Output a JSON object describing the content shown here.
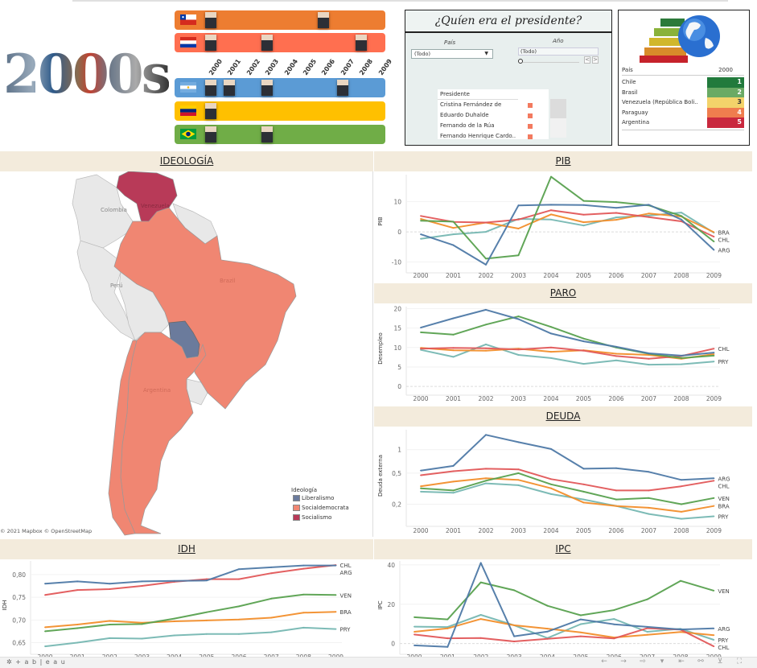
{
  "header": {
    "logo_text": "2000s",
    "timeline": {
      "years": [
        "2000",
        "2001",
        "2002",
        "2003",
        "2004",
        "2005",
        "2006",
        "2007",
        "2008",
        "2009"
      ],
      "rows": [
        {
          "country": "Chile",
          "flag": "chile-flag",
          "color": "#ed7d31",
          "president_years": [
            2000,
            2006
          ]
        },
        {
          "country": "Paraguay",
          "flag": "paraguay-flag",
          "color": "#ff6f50",
          "president_years": [
            2000,
            2003,
            2008
          ]
        },
        {
          "country": "Argentina",
          "flag": "argentina-flag",
          "color": "#5b9bd5",
          "president_years": [
            2000,
            2001,
            2003,
            2007
          ]
        },
        {
          "country": "Venezuela",
          "flag": "venezuela-flag",
          "color": "#ffc000",
          "president_years": [
            2000
          ]
        },
        {
          "country": "Brasil",
          "flag": "brazil-flag",
          "color": "#70ad47",
          "president_years": [
            2000,
            2003
          ]
        }
      ]
    }
  },
  "president_panel": {
    "title": "¿Quíen era el presidente?",
    "pais_label": "País",
    "pais_value": "(Todo)",
    "anio_label": "Año",
    "anio_value": "(Todo)",
    "slider_value": "0",
    "prev_label": "<",
    "next_label": ">",
    "list_header": "Presidente",
    "presidents": [
      "Cristina Fernández de",
      "Eduardo Duhalde",
      "Fernando de la Rúa",
      "Fernando Henrique Cardo.."
    ]
  },
  "ranking_panel": {
    "col_country": "País",
    "col_year": "2000",
    "rows": [
      {
        "country": "Chile",
        "rank": "1",
        "color": "#217a3c"
      },
      {
        "country": "Brasil",
        "rank": "2",
        "color": "#6aaa64"
      },
      {
        "country": "Venezuela (República Boli..",
        "rank": "3",
        "color": "#f3d36a"
      },
      {
        "country": "Paraguay",
        "rank": "4",
        "color": "#ef7d4e"
      },
      {
        "country": "Argentina",
        "rank": "5",
        "color": "#c9283e"
      }
    ]
  },
  "sections": {
    "ideologia": "IDEOLOGÍA",
    "pib": "PIB",
    "paro": "PARO",
    "deuda": "DEUDA",
    "idh": "IDH",
    "ipc": "IPC"
  },
  "map": {
    "labels": {
      "venezuela": "Venezuela",
      "colombia": "Colombia",
      "peru": "Perú",
      "brazil": "Brazil",
      "argentina": "Argentina"
    },
    "legend_title": "Ideología",
    "legend": [
      {
        "label": "Liberalismo",
        "color": "#6b7b9c"
      },
      {
        "label": "Socialdemocrata",
        "color": "#f08672"
      },
      {
        "label": "Socialismo",
        "color": "#b83a58"
      }
    ],
    "ideology": {
      "Venezuela": "Socialismo",
      "Brazil": "Socialdemocrata",
      "Argentina": "Socialdemocrata",
      "Chile": "Socialdemocrata",
      "Paraguay": "Liberalismo"
    },
    "attribution": "© 2021 Mapbox © OpenStreetMap"
  },
  "series_colors": {
    "ARG": "#4e79a7",
    "CHL": "#e15759",
    "BRA": "#f28e2b",
    "VEN": "#59a14f",
    "PRY": "#76b7b2"
  },
  "chart_data": [
    {
      "id": "pib",
      "type": "line",
      "title": "PIB",
      "xlabel": "",
      "ylabel": "PIB",
      "x": [
        2000,
        2001,
        2002,
        2003,
        2004,
        2005,
        2006,
        2007,
        2008,
        2009
      ],
      "ylim": [
        -12,
        19
      ],
      "yticks": [
        -10,
        0,
        10
      ],
      "ytick_labels": [
        "-10",
        "0",
        "10"
      ],
      "scale": "linear",
      "series": [
        {
          "name": "ARG",
          "values": [
            -0.8,
            -4.4,
            -10.9,
            8.8,
            9.0,
            8.9,
            8.0,
            9.0,
            4.1,
            -6.0
          ]
        },
        {
          "name": "CHL",
          "values": [
            5.3,
            3.3,
            3.1,
            4.1,
            7.2,
            5.7,
            6.3,
            4.9,
            3.5,
            -1.6
          ]
        },
        {
          "name": "BRA",
          "values": [
            4.3,
            1.3,
            3.1,
            1.1,
            5.8,
            3.2,
            4.0,
            6.1,
            5.1,
            -0.1
          ]
        },
        {
          "name": "VEN",
          "values": [
            3.7,
            3.4,
            -8.9,
            -7.8,
            18.3,
            10.3,
            9.9,
            8.8,
            5.3,
            -3.2
          ]
        },
        {
          "name": "PRY",
          "values": [
            -2.3,
            -0.8,
            0.0,
            4.3,
            4.1,
            2.1,
            4.8,
            5.4,
            6.4,
            -0.3
          ]
        }
      ],
      "end_labels": [
        "BRA",
        "CHL",
        "ARG"
      ]
    },
    {
      "id": "paro",
      "type": "line",
      "title": "PARO",
      "xlabel": "",
      "ylabel": "Desempleo",
      "x": [
        2000,
        2001,
        2002,
        2003,
        2004,
        2005,
        2006,
        2007,
        2008,
        2009
      ],
      "ylim": [
        -1,
        20.5
      ],
      "yticks": [
        0,
        5,
        10,
        15,
        20
      ],
      "ytick_labels": [
        "0",
        "5",
        "10",
        "15",
        "20"
      ],
      "scale": "linear",
      "series": [
        {
          "name": "ARG",
          "values": [
            15.1,
            17.5,
            19.7,
            17.3,
            13.6,
            11.6,
            10.2,
            8.5,
            7.9,
            8.7
          ]
        },
        {
          "name": "CHL",
          "values": [
            9.7,
            9.9,
            9.8,
            9.5,
            10.0,
            9.2,
            7.8,
            7.1,
            7.8,
            9.7
          ]
        },
        {
          "name": "BRA",
          "values": [
            9.9,
            9.3,
            9.2,
            9.7,
            8.9,
            9.3,
            8.4,
            8.1,
            7.1,
            8.3
          ]
        },
        {
          "name": "VEN",
          "values": [
            13.9,
            13.3,
            15.9,
            18.0,
            15.3,
            12.3,
            10.0,
            8.4,
            7.3,
            7.9
          ]
        },
        {
          "name": "PRY",
          "values": [
            9.4,
            7.6,
            10.8,
            8.1,
            7.3,
            5.8,
            6.7,
            5.6,
            5.7,
            6.4
          ]
        }
      ],
      "end_labels": [
        "CHL",
        "PRY"
      ]
    },
    {
      "id": "deuda",
      "type": "line",
      "title": "DEUDA",
      "xlabel": "",
      "ylabel": "Deuda externa",
      "x": [
        2000,
        2001,
        2002,
        2003,
        2004,
        2005,
        2006,
        2007,
        2008,
        2009
      ],
      "ylim": [
        0.12,
        1.8
      ],
      "yticks": [
        0.2,
        0.5,
        1
      ],
      "ytick_labels": [
        "0,2",
        "0,5",
        "1"
      ],
      "scale": "log",
      "series": [
        {
          "name": "ARG",
          "values": [
            0.54,
            0.62,
            1.55,
            1.25,
            1.02,
            0.57,
            0.58,
            0.52,
            0.41,
            0.43
          ]
        },
        {
          "name": "CHL",
          "values": [
            0.47,
            0.53,
            0.57,
            0.56,
            0.42,
            0.36,
            0.3,
            0.3,
            0.34,
            0.4
          ]
        },
        {
          "name": "BRA",
          "values": [
            0.34,
            0.39,
            0.43,
            0.41,
            0.32,
            0.21,
            0.19,
            0.18,
            0.16,
            0.19
          ]
        },
        {
          "name": "VEN",
          "values": [
            0.32,
            0.3,
            0.4,
            0.5,
            0.36,
            0.29,
            0.23,
            0.24,
            0.2,
            0.24
          ]
        },
        {
          "name": "PRY",
          "values": [
            0.29,
            0.28,
            0.37,
            0.35,
            0.27,
            0.23,
            0.19,
            0.15,
            0.13,
            0.14
          ]
        }
      ],
      "end_labels": [
        "ARG",
        "CHL",
        "VEN",
        "BRA",
        "PRY"
      ]
    },
    {
      "id": "idh",
      "type": "line",
      "title": "IDH",
      "xlabel": "",
      "ylabel": "IDH",
      "x": [
        2000,
        2001,
        2002,
        2003,
        2004,
        2005,
        2006,
        2007,
        2008,
        2009
      ],
      "ylim": [
        0.635,
        0.83
      ],
      "yticks": [
        0.65,
        0.7,
        0.75,
        0.8
      ],
      "ytick_labels": [
        "0,65",
        "0,70",
        "0,75",
        "0,80"
      ],
      "scale": "linear",
      "series": [
        {
          "name": "ARG",
          "values": [
            0.78,
            0.785,
            0.78,
            0.785,
            0.786,
            0.787,
            0.812,
            0.816,
            0.82,
            0.82
          ]
        },
        {
          "name": "CHL",
          "values": [
            0.755,
            0.766,
            0.768,
            0.775,
            0.784,
            0.79,
            0.79,
            0.803,
            0.813,
            0.821
          ]
        },
        {
          "name": "BRA",
          "values": [
            0.684,
            0.69,
            0.698,
            0.694,
            0.697,
            0.699,
            0.701,
            0.705,
            0.716,
            0.718
          ]
        },
        {
          "name": "VEN",
          "values": [
            0.675,
            0.682,
            0.69,
            0.691,
            0.703,
            0.717,
            0.73,
            0.747,
            0.756,
            0.755
          ]
        },
        {
          "name": "PRY",
          "values": [
            0.642,
            0.65,
            0.66,
            0.659,
            0.666,
            0.669,
            0.669,
            0.673,
            0.683,
            0.68
          ]
        }
      ],
      "end_labels": [
        "CHL",
        "ARG",
        "VEN",
        "BRA",
        "PRY"
      ]
    },
    {
      "id": "ipc",
      "type": "line",
      "title": "IPC",
      "xlabel": "",
      "ylabel": "IPC",
      "x": [
        2000,
        2001,
        2002,
        2003,
        2004,
        2005,
        2006,
        2007,
        2008,
        2009
      ],
      "ylim": [
        -3,
        42
      ],
      "yticks": [
        0,
        20,
        40
      ],
      "ytick_labels": [
        "0",
        "20",
        "40"
      ],
      "scale": "linear",
      "series": [
        {
          "name": "ARG",
          "values": [
            -0.9,
            -1.7,
            41.0,
            3.7,
            6.1,
            12.3,
            9.8,
            8.5,
            7.2,
            7.7
          ]
        },
        {
          "name": "CHL",
          "values": [
            4.6,
            2.7,
            2.8,
            1.1,
            2.4,
            3.7,
            2.6,
            7.8,
            7.1,
            -1.4
          ]
        },
        {
          "name": "BRA",
          "values": [
            6.0,
            7.7,
            12.5,
            9.3,
            7.6,
            5.7,
            3.1,
            4.5,
            5.9,
            4.3
          ]
        },
        {
          "name": "VEN",
          "values": [
            13.4,
            12.3,
            31.1,
            27.1,
            19.2,
            14.4,
            17.0,
            22.5,
            31.9,
            26.9
          ]
        },
        {
          "name": "PRY",
          "values": [
            8.6,
            8.4,
            14.6,
            9.3,
            2.8,
            9.9,
            12.5,
            6.0,
            7.5,
            1.9
          ]
        }
      ],
      "end_labels": [
        "VEN",
        "ARG",
        "PRY",
        "CHL"
      ]
    }
  ],
  "toolbar": {
    "logo": "+ a b | e a u",
    "icons": [
      "undo-icon",
      "redo-icon",
      "revert-icon",
      "pause-icon",
      "reset-icon",
      "share-icon",
      "download-icon",
      "fullscreen-icon"
    ]
  }
}
